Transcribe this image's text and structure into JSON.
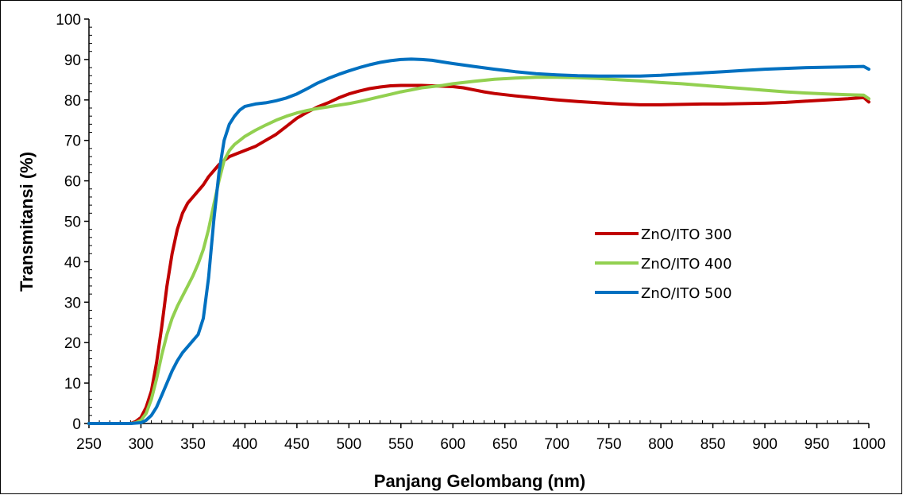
{
  "chart_data": {
    "type": "line",
    "title": "",
    "xlabel": "Panjang Gelombang (nm)",
    "ylabel": "Transmitansi (%)",
    "xlim": [
      250,
      1000
    ],
    "ylim": [
      0,
      100
    ],
    "x_ticks": [
      "250",
      "300",
      "350",
      "400",
      "450",
      "500",
      "550",
      "600",
      "650",
      "700",
      "750",
      "800",
      "850",
      "900",
      "950",
      "1000"
    ],
    "y_ticks": [
      "0",
      "10",
      "20",
      "30",
      "40",
      "50",
      "60",
      "70",
      "80",
      "90",
      "100"
    ],
    "grid": false,
    "legend_position": "center-right",
    "series": [
      {
        "name": "ZnO/ITO 300",
        "color": "#C00000",
        "x": [
          250,
          260,
          270,
          280,
          290,
          295,
          300,
          305,
          310,
          315,
          320,
          325,
          330,
          335,
          340,
          345,
          350,
          355,
          360,
          365,
          370,
          375,
          380,
          385,
          390,
          400,
          410,
          420,
          430,
          440,
          450,
          460,
          470,
          480,
          490,
          500,
          510,
          520,
          530,
          540,
          550,
          560,
          570,
          580,
          590,
          600,
          610,
          620,
          630,
          640,
          650,
          660,
          680,
          700,
          720,
          740,
          760,
          780,
          800,
          820,
          840,
          860,
          880,
          900,
          920,
          940,
          960,
          980,
          995,
          1000
        ],
        "y": [
          0,
          0,
          0,
          0,
          0,
          0.5,
          1.5,
          4,
          8,
          15,
          24,
          34,
          42,
          48,
          52,
          54.5,
          56,
          57.5,
          59,
          61,
          62.5,
          64,
          65,
          66,
          66.5,
          67.5,
          68.5,
          70,
          71.5,
          73.5,
          75.5,
          77,
          78.3,
          79.3,
          80.5,
          81.5,
          82.2,
          82.8,
          83.2,
          83.5,
          83.6,
          83.6,
          83.6,
          83.5,
          83.4,
          83.3,
          83,
          82.5,
          82,
          81.6,
          81.3,
          81,
          80.5,
          80,
          79.6,
          79.3,
          79,
          78.8,
          78.8,
          78.9,
          79,
          79,
          79.1,
          79.2,
          79.4,
          79.7,
          80,
          80.3,
          80.6,
          79.5
        ]
      },
      {
        "name": "ZnO/ITO 400",
        "color": "#92D050",
        "x": [
          250,
          260,
          270,
          280,
          290,
          295,
          300,
          305,
          310,
          315,
          320,
          325,
          330,
          335,
          340,
          345,
          350,
          355,
          360,
          365,
          370,
          375,
          380,
          385,
          390,
          395,
          400,
          410,
          420,
          430,
          440,
          450,
          460,
          470,
          480,
          490,
          500,
          510,
          520,
          530,
          540,
          550,
          560,
          570,
          580,
          590,
          600,
          620,
          640,
          660,
          680,
          700,
          720,
          740,
          760,
          780,
          800,
          820,
          840,
          860,
          880,
          900,
          920,
          940,
          960,
          980,
          995,
          1000
        ],
        "y": [
          0,
          0,
          0,
          0,
          0,
          0.2,
          0.8,
          2.5,
          6,
          11,
          17,
          22,
          26,
          29,
          31.5,
          34,
          36.5,
          39.5,
          43,
          48,
          54,
          60,
          65,
          67.5,
          69,
          70,
          71,
          72.5,
          73.8,
          75,
          76,
          76.8,
          77.4,
          77.9,
          78.3,
          78.7,
          79.1,
          79.6,
          80.2,
          80.8,
          81.4,
          82,
          82.5,
          83,
          83.3,
          83.6,
          84,
          84.6,
          85.1,
          85.4,
          85.6,
          85.6,
          85.5,
          85.3,
          85,
          84.7,
          84.3,
          84,
          83.6,
          83.2,
          82.8,
          82.4,
          82,
          81.7,
          81.5,
          81.3,
          81.2,
          80.3
        ]
      },
      {
        "name": "ZnO/ITO 500",
        "color": "#0070C0",
        "x": [
          250,
          260,
          270,
          280,
          290,
          300,
          305,
          310,
          315,
          320,
          325,
          330,
          335,
          340,
          345,
          350,
          355,
          360,
          365,
          370,
          375,
          380,
          385,
          390,
          395,
          400,
          410,
          420,
          430,
          440,
          450,
          460,
          470,
          480,
          490,
          500,
          510,
          520,
          530,
          540,
          550,
          560,
          570,
          580,
          590,
          600,
          620,
          640,
          660,
          680,
          700,
          720,
          740,
          760,
          780,
          800,
          820,
          840,
          860,
          880,
          900,
          920,
          940,
          960,
          980,
          995,
          1000
        ],
        "y": [
          0,
          0,
          0,
          0,
          0,
          0.2,
          0.8,
          2,
          4,
          7,
          10,
          13,
          15.5,
          17.5,
          19,
          20.5,
          22,
          26,
          36,
          50,
          62,
          70,
          74,
          76,
          77.5,
          78.4,
          79,
          79.3,
          79.8,
          80.5,
          81.5,
          82.8,
          84.2,
          85.3,
          86.3,
          87.2,
          88,
          88.7,
          89.3,
          89.7,
          90,
          90.1,
          90,
          89.8,
          89.4,
          89,
          88.3,
          87.6,
          87,
          86.5,
          86.2,
          86,
          85.9,
          85.9,
          85.9,
          86.1,
          86.4,
          86.7,
          87,
          87.3,
          87.6,
          87.8,
          88,
          88.1,
          88.2,
          88.3,
          87.6
        ]
      }
    ]
  }
}
